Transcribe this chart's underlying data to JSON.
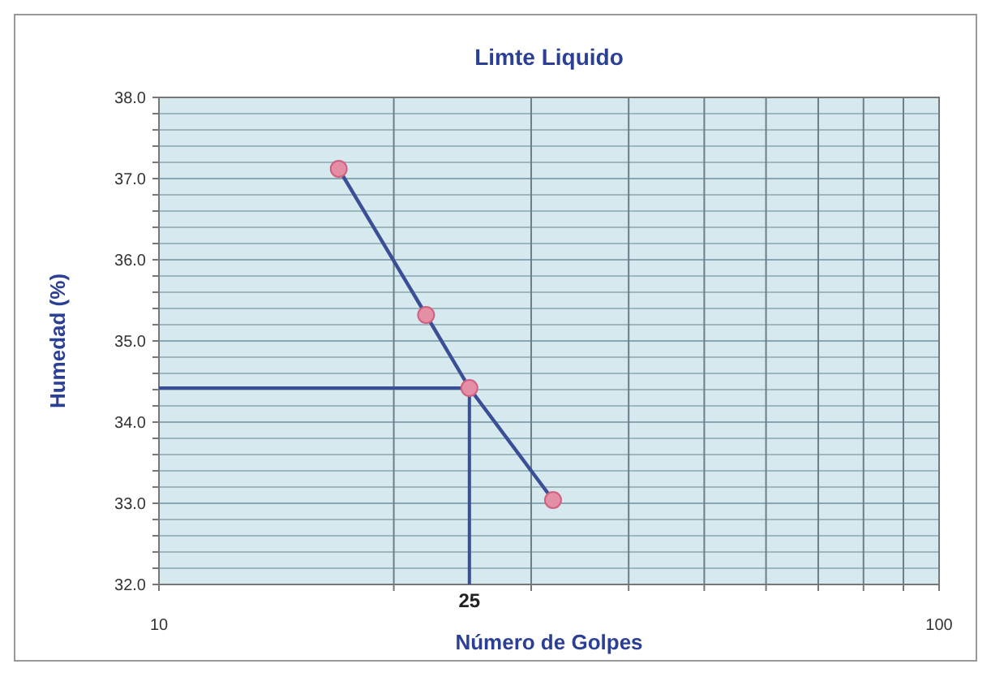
{
  "chart_data": {
    "type": "line",
    "title": "Limte Liquido",
    "xlabel": "Número de Golpes",
    "ylabel": "Humedad (%)",
    "log": "x",
    "x": [
      17,
      22,
      25,
      32
    ],
    "series": [
      {
        "color": "#3b4f96",
        "values": [
          37.12,
          35.32,
          34.42,
          33.04
        ]
      }
    ],
    "marker": "circle",
    "line_style": "solid",
    "grid": true,
    "xlim": [
      10,
      100
    ],
    "xticks": [
      10,
      {
        "value": 20,
        "label": null
      },
      {
        "value": 30,
        "label": null
      },
      {
        "value": 40,
        "label": null
      },
      {
        "value": 50,
        "label": null
      },
      {
        "value": 60,
        "label": null
      },
      {
        "value": 70,
        "label": null
      },
      {
        "value": 80,
        "label": null
      },
      {
        "value": 90,
        "label": null
      },
      100
    ],
    "ylim": [
      32,
      38
    ],
    "yticks": [
      {
        "value": 32,
        "label": "32.0"
      },
      {
        "value": 32.2,
        "label": null
      },
      {
        "value": 32.4,
        "label": null
      },
      {
        "value": 32.6,
        "label": null
      },
      {
        "value": 32.8,
        "label": null
      },
      {
        "value": 33,
        "label": "33.0"
      },
      {
        "value": 33.2,
        "label": null
      },
      {
        "value": 33.4,
        "label": null
      },
      {
        "value": 33.6,
        "label": null
      },
      {
        "value": 33.8,
        "label": null
      },
      {
        "value": 34,
        "label": "34.0"
      },
      {
        "value": 34.2,
        "label": null
      },
      {
        "value": 34.4,
        "label": null
      },
      {
        "value": 34.6,
        "label": null
      },
      {
        "value": 34.8,
        "label": null
      },
      {
        "value": 35,
        "label": "35.0"
      },
      {
        "value": 35.2,
        "label": null
      },
      {
        "value": 35.4,
        "label": null
      },
      {
        "value": 35.6,
        "label": null
      },
      {
        "value": 35.8,
        "label": null
      },
      {
        "value": 36,
        "label": "36.0"
      },
      {
        "value": 36.2,
        "label": null
      },
      {
        "value": 36.4,
        "label": null
      },
      {
        "value": 36.6,
        "label": null
      },
      {
        "value": 36.8,
        "label": null
      },
      {
        "value": 37,
        "label": "37.0"
      },
      {
        "value": 37.2,
        "label": null
      },
      {
        "value": 37.4,
        "label": null
      },
      {
        "value": 37.6,
        "label": null
      },
      {
        "value": 37.8,
        "label": null
      },
      {
        "value": 38,
        "label": "38.0"
      }
    ],
    "ref_lines": [
      {
        "axis": "x",
        "value": 25,
        "label": "25",
        "color": "#3b4f96"
      },
      {
        "axis": "y",
        "value": 34.42,
        "color": "#3b4f96"
      }
    ]
  }
}
